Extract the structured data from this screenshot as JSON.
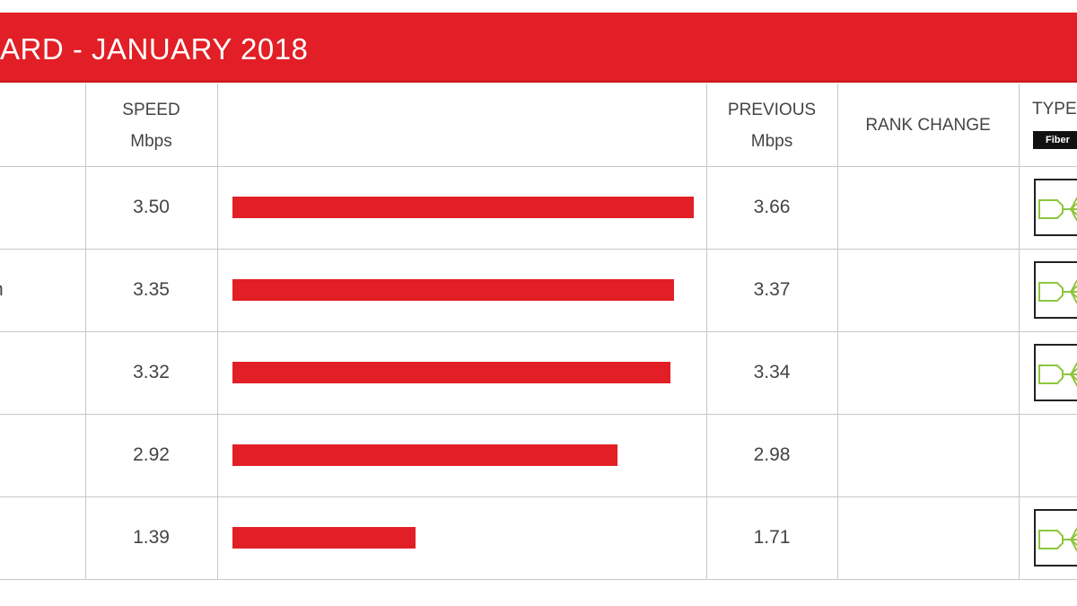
{
  "title": "ARD - JANUARY 2018",
  "headers": {
    "speed": [
      "SPEED",
      "Mbps"
    ],
    "previous": [
      "PREVIOUS",
      "Mbps"
    ],
    "rank_change": "RANK CHANGE",
    "type": "TYPE",
    "type_tag": "Fiber"
  },
  "rows": [
    {
      "name": "",
      "speed": "3.50",
      "previous": "3.66",
      "rank_change": "",
      "type_icon": "fiber-optic-icon"
    },
    {
      "name": "n",
      "speed": "3.35",
      "previous": "3.37",
      "rank_change": "",
      "type_icon": "fiber-optic-icon"
    },
    {
      "name": "",
      "speed": "3.32",
      "previous": "3.34",
      "rank_change": "",
      "type_icon": "fiber-optic-icon"
    },
    {
      "name": "",
      "speed": "2.92",
      "previous": "2.98",
      "rank_change": "",
      "type_icon": ""
    },
    {
      "name": "",
      "speed": "1.39",
      "previous": "1.71",
      "rank_change": "",
      "type_icon": "fiber-optic-icon"
    }
  ],
  "colors": {
    "accent": "#e21f26",
    "fiber_icon": "#8dc63f"
  },
  "chart_data": {
    "type": "bar",
    "orientation": "horizontal",
    "categories": [
      "",
      "n",
      "",
      "",
      ""
    ],
    "values": [
      3.5,
      3.35,
      3.32,
      2.92,
      1.39
    ],
    "previous_values": [
      3.66,
      3.37,
      3.34,
      2.98,
      1.71
    ],
    "xlim": [
      0,
      3.5
    ],
    "title": "ARD - JANUARY 2018",
    "grid": false
  }
}
